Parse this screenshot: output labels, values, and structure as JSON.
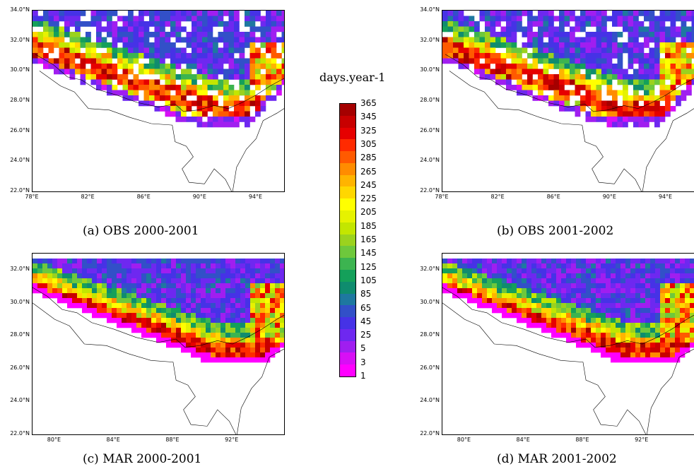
{
  "colorbar": {
    "title": "days.year-1",
    "labels": [
      "365",
      "345",
      "325",
      "305",
      "285",
      "265",
      "245",
      "225",
      "205",
      "185",
      "165",
      "145",
      "125",
      "105",
      "85",
      "65",
      "45",
      "25",
      "5",
      "3",
      "1"
    ],
    "colors": [
      "#a50000",
      "#c80000",
      "#e60000",
      "#ff2a00",
      "#ff5a00",
      "#ff8c00",
      "#ffb400",
      "#ffd700",
      "#ffff00",
      "#e6f200",
      "#c3e600",
      "#9bd21e",
      "#6ec83c",
      "#3cb450",
      "#14a05a",
      "#0f8c6e",
      "#1e78a0",
      "#3250c8",
      "#4632e6",
      "#6e28f0",
      "#a01ef0",
      "#d70ff5",
      "#ff00ff"
    ]
  },
  "panels": [
    {
      "id": "a",
      "caption": "(a) OBS 2000-2001",
      "lat_labels": [
        "34.0°N",
        "32.0°N",
        "30.0°N",
        "28.0°N",
        "26.0°N",
        "24.0°N",
        "22.0°N"
      ],
      "lon_labels": [
        "78°E",
        "82°E",
        "86°E",
        "90°E",
        "94°E"
      ],
      "lat_range": [
        22,
        34
      ],
      "lon_range": [
        78,
        96
      ],
      "field": "obs",
      "seed": 11
    },
    {
      "id": "b",
      "caption": "(b) OBS 2001-2002",
      "lat_labels": [
        "34.0°N",
        "32.0°N",
        "30.0°N",
        "28.0°N",
        "26.0°N",
        "24.0°N",
        "22.0°N"
      ],
      "lon_labels": [
        "78°E",
        "82°E",
        "86°E",
        "90°E",
        "94°E"
      ],
      "lat_range": [
        22,
        34
      ],
      "lon_range": [
        78,
        96
      ],
      "field": "obs",
      "seed": 29
    },
    {
      "id": "c",
      "caption": "(c) MAR 2000-2001",
      "lat_labels": [
        "32.0°N",
        "30.0°N",
        "28.0°N",
        "26.0°N",
        "24.0°N",
        "22.0°N"
      ],
      "lon_labels": [
        "80°E",
        "84°E",
        "88°E",
        "92°E"
      ],
      "lat_range": [
        22,
        33
      ],
      "lon_range": [
        78.5,
        95.5
      ],
      "field": "mar",
      "seed": 5
    },
    {
      "id": "d",
      "caption": "(d) MAR 2001-2002",
      "lat_labels": [
        "32.0°N",
        "30.0°N",
        "28.0°N",
        "26.0°N",
        "24.0°N",
        "22.0°N"
      ],
      "lon_labels": [
        "80°E",
        "84°E",
        "88°E",
        "92°E"
      ],
      "lat_range": [
        22,
        33
      ],
      "lon_range": [
        78.5,
        95.5
      ],
      "field": "mar",
      "seed": 17
    }
  ]
}
